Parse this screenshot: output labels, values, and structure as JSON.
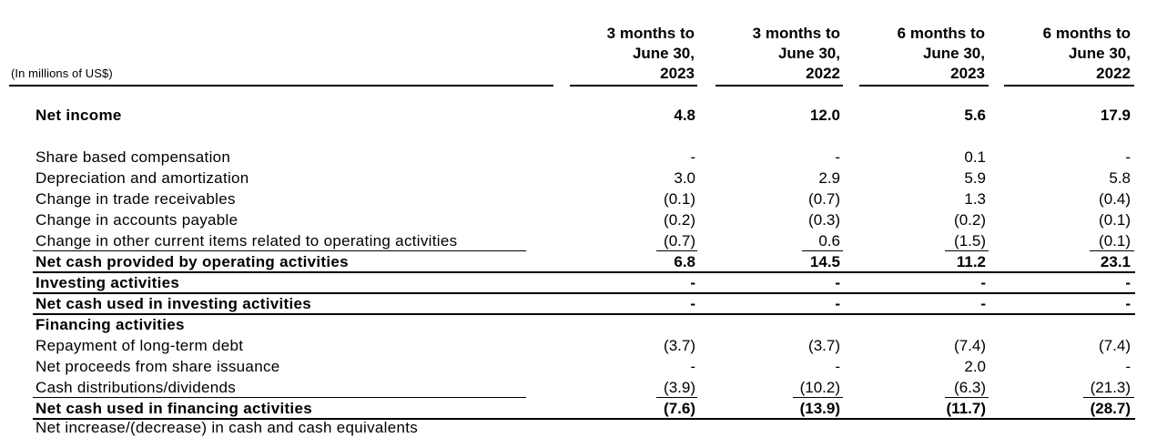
{
  "header": {
    "units": "(In millions of US$)",
    "columns": [
      {
        "line1": "3 months to",
        "line2": "June 30,",
        "line3": "2023"
      },
      {
        "line1": "3 months to",
        "line2": "June 30,",
        "line3": "2022"
      },
      {
        "line1": "6 months to",
        "line2": "June 30,",
        "line3": "2023"
      },
      {
        "line1": "6 months to",
        "line2": "June 30,",
        "line3": "2022"
      }
    ]
  },
  "rows": {
    "net_income": {
      "label": "Net income",
      "values": [
        "4.8",
        "12.0",
        "5.6",
        "17.9"
      ]
    },
    "share_based": {
      "label": "Share based compensation",
      "values": [
        "-",
        "-",
        "0.1",
        "-"
      ]
    },
    "depreciation": {
      "label": "Depreciation and amortization",
      "values": [
        "3.0",
        "2.9",
        "5.9",
        "5.8"
      ]
    },
    "trade_receivables": {
      "label": "Change in trade receivables",
      "values": [
        "(0.1)",
        "(0.7)",
        "1.3",
        "(0.4)"
      ]
    },
    "accounts_payable": {
      "label": "Change in accounts payable",
      "values": [
        "(0.2)",
        "(0.3)",
        "(0.2)",
        "(0.1)"
      ]
    },
    "other_current": {
      "label": "Change in other current items related to operating activities",
      "values": [
        "(0.7)",
        "0.6",
        "(1.5)",
        "(0.1)"
      ]
    },
    "net_cash_operating": {
      "label": "Net cash provided by operating activities",
      "values": [
        "6.8",
        "14.5",
        "11.2",
        "23.1"
      ]
    },
    "investing_heading": {
      "label": "Investing activities",
      "values": [
        "-",
        "-",
        "-",
        "-"
      ]
    },
    "net_cash_investing": {
      "label": "Net cash used in investing activities",
      "values": [
        "-",
        "-",
        "-",
        "-"
      ]
    },
    "financing_heading": {
      "label": "Financing activities"
    },
    "repayment_debt": {
      "label": "Repayment of long-term debt",
      "values": [
        "(3.7)",
        "(3.7)",
        "(7.4)",
        "(7.4)"
      ]
    },
    "share_issuance": {
      "label": "Net proceeds from share issuance",
      "values": [
        "-",
        "-",
        "2.0",
        "-"
      ]
    },
    "cash_distributions": {
      "label": "Cash distributions/dividends",
      "values": [
        "(3.9)",
        "(10.2)",
        "(6.3)",
        "(21.3)"
      ]
    },
    "net_cash_financing": {
      "label": "Net cash used in financing activities",
      "values": [
        "(7.6)",
        "(13.9)",
        "(11.7)",
        "(28.7)"
      ]
    }
  },
  "partial_row": {
    "label": "Net increase/(decrease) in cash and cash equivalents"
  }
}
